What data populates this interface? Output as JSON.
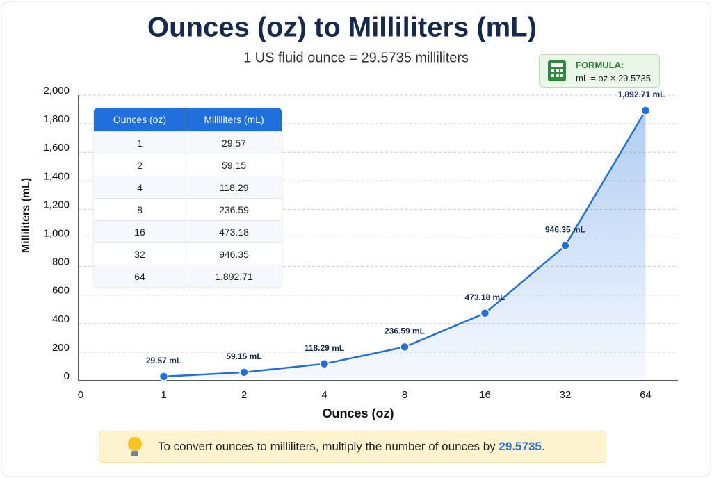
{
  "chart_data": {
    "type": "line",
    "title": "Ounces (oz) to Milliliters (mL)",
    "subtitle": "1 US fluid ounce = 29.5735 milliliters",
    "x_label": "Ounces (oz)",
    "y_label": "Milliliters (mL)",
    "categories": [
      "0",
      "1",
      "2",
      "4",
      "8",
      "16",
      "32",
      "64"
    ],
    "series": [
      {
        "name": "Milliliters",
        "color": "#1f6fdc",
        "values": [
          null,
          29.57,
          59.15,
          118.29,
          236.59,
          473.18,
          946.35,
          1892.71
        ],
        "value_labels": [
          null,
          "29.57 mL",
          "59.15 mL",
          "118.29 mL",
          "236.59 mL",
          "473.18 mL",
          "946.35 mL",
          "1,892.71 mL"
        ]
      }
    ],
    "ylim": [
      0,
      2000
    ],
    "yticks": [
      0,
      200,
      400,
      600,
      800,
      {
        "value": 1000,
        "label": "1,000"
      },
      {
        "value": 1200,
        "label": "1,200"
      },
      {
        "value": 1400,
        "label": "1,400"
      },
      {
        "value": 1600,
        "label": "1,600"
      },
      {
        "value": 1800,
        "label": "1,800"
      },
      {
        "value": 2000,
        "label": "2,000"
      }
    ],
    "grid": true
  },
  "table": {
    "header": [
      "Ounces (oz)",
      "Milliliters (mL)"
    ],
    "rows": [
      [
        "1",
        "29.57"
      ],
      [
        "2",
        "59.15"
      ],
      [
        "4",
        "118.29"
      ],
      [
        "8",
        "236.59"
      ],
      [
        "16",
        "473.18"
      ],
      [
        "32",
        "946.35"
      ],
      [
        "64",
        "1,892.71"
      ]
    ]
  },
  "formula": {
    "label": "FORMULA:",
    "text": "mL = oz × 29.5735"
  },
  "tip": {
    "text": "To convert ounces to milliliters, multiply the number of ounces by",
    "highlight": "29.5735",
    "end": "."
  }
}
